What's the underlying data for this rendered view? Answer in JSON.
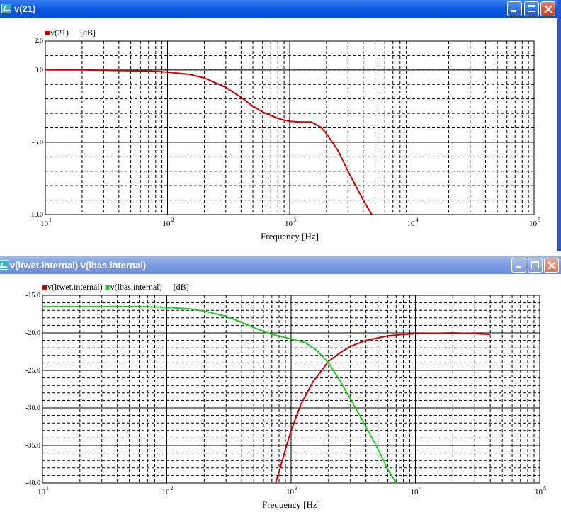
{
  "windows": [
    {
      "title": "v(21)",
      "chart_data": {
        "type": "line",
        "xscale": "log",
        "xlim": [
          10,
          100000
        ],
        "ylim": [
          -10.0,
          2.0
        ],
        "yticks": [
          "2.0",
          "0.0",
          "-5.0",
          "-10.0"
        ],
        "yticks_values": [
          2,
          0,
          -5,
          -10
        ],
        "xticks": [
          {
            "base": "10",
            "exp": "1",
            "value": 10
          },
          {
            "base": "10",
            "exp": "2",
            "value": 100
          },
          {
            "base": "10",
            "exp": "3",
            "value": 1000
          },
          {
            "base": "10",
            "exp": "4",
            "value": 10000
          },
          {
            "base": "10",
            "exp": "5",
            "value": 100000
          }
        ],
        "xlabel": "Frequency [Hz]",
        "unit_label": "[dB]",
        "grid": true,
        "legend": "top-left",
        "series": [
          {
            "name": "v(21)",
            "color": "#cc0000",
            "points": [
              [
                10,
                0.0
              ],
              [
                20,
                0.0
              ],
              [
                30,
                -0.02
              ],
              [
                50,
                -0.05
              ],
              [
                80,
                -0.1
              ],
              [
                100,
                -0.15
              ],
              [
                150,
                -0.3
              ],
              [
                200,
                -0.55
              ],
              [
                300,
                -1.2
              ],
              [
                400,
                -1.9
              ],
              [
                500,
                -2.5
              ],
              [
                600,
                -2.9
              ],
              [
                800,
                -3.35
              ],
              [
                1000,
                -3.55
              ],
              [
                1200,
                -3.6
              ],
              [
                1500,
                -3.6
              ],
              [
                1800,
                -3.95
              ],
              [
                2000,
                -4.4
              ],
              [
                2500,
                -5.6
              ],
              [
                3000,
                -7.0
              ],
              [
                4000,
                -9.0
              ],
              [
                4700,
                -10.0
              ]
            ]
          }
        ]
      }
    },
    {
      "title": "v(ltwet.internal) v(lbas.internal)",
      "chart_data": {
        "type": "line",
        "xscale": "log",
        "xlim": [
          10,
          100000
        ],
        "ylim": [
          -40.0,
          -15.0
        ],
        "yticks": [
          "-15.0",
          "-20.0",
          "-25.0",
          "-30.0",
          "-35.0",
          "-40.0"
        ],
        "yticks_values": [
          -15,
          -20,
          -25,
          -30,
          -35,
          -40
        ],
        "xticks": [
          {
            "base": "10",
            "exp": "1",
            "value": 10
          },
          {
            "base": "10",
            "exp": "2",
            "value": 100
          },
          {
            "base": "10",
            "exp": "3",
            "value": 1000
          },
          {
            "base": "10",
            "exp": "4",
            "value": 10000
          },
          {
            "base": "10",
            "exp": "5",
            "value": 100000
          }
        ],
        "xlabel": "Frequency [Hz]",
        "unit_label": "[dB]",
        "grid": true,
        "legend": "top-left",
        "series": [
          {
            "name": "v(ltwet.internal)",
            "color": "#cc0000",
            "points": [
              [
                750,
                -40.0
              ],
              [
                800,
                -38.5
              ],
              [
                900,
                -35.5
              ],
              [
                1000,
                -33.0
              ],
              [
                1200,
                -29.5
              ],
              [
                1500,
                -26.5
              ],
              [
                2000,
                -23.8
              ],
              [
                2500,
                -22.6
              ],
              [
                3000,
                -21.8
              ],
              [
                4000,
                -21.0
              ],
              [
                6000,
                -20.4
              ],
              [
                8000,
                -20.2
              ],
              [
                10000,
                -20.1
              ],
              [
                20000,
                -20.0
              ],
              [
                30000,
                -20.1
              ],
              [
                40000,
                -20.2
              ]
            ]
          },
          {
            "name": "v(lbas.internal)",
            "color": "#22cc22",
            "points": [
              [
                10,
                -16.5
              ],
              [
                30,
                -16.5
              ],
              [
                60,
                -16.5
              ],
              [
                100,
                -16.6
              ],
              [
                150,
                -16.8
              ],
              [
                200,
                -17.1
              ],
              [
                300,
                -17.8
              ],
              [
                400,
                -18.6
              ],
              [
                500,
                -19.3
              ],
              [
                700,
                -20.2
              ],
              [
                1000,
                -20.8
              ],
              [
                1300,
                -21.3
              ],
              [
                1600,
                -22.3
              ],
              [
                2000,
                -24.0
              ],
              [
                2500,
                -26.5
              ],
              [
                3000,
                -28.8
              ],
              [
                4000,
                -32.5
              ],
              [
                5000,
                -35.5
              ],
              [
                6000,
                -38.2
              ],
              [
                7000,
                -40.0
              ]
            ]
          }
        ]
      }
    }
  ]
}
